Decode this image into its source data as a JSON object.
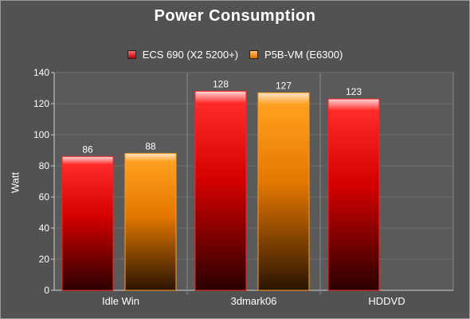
{
  "chart_data": {
    "type": "bar",
    "title": "Power Consumption",
    "xlabel": "",
    "ylabel": "Watt",
    "ylim": [
      0,
      140
    ],
    "yticks": [
      0,
      20,
      40,
      60,
      80,
      100,
      120,
      140
    ],
    "categories": [
      "Idle Win",
      "3dmark06",
      "HDDVD"
    ],
    "series": [
      {
        "name": "ECS 690 (X2 5200+)",
        "values": [
          86,
          128,
          123
        ]
      },
      {
        "name": "P5B-VM (E6300)",
        "values": [
          88,
          127,
          null
        ]
      }
    ],
    "grid": true,
    "legend_position": "top-center",
    "colors": {
      "series1": "#e00000",
      "series2": "#ff8c00",
      "background": "#525252",
      "plot": "#5a5a5a"
    }
  }
}
